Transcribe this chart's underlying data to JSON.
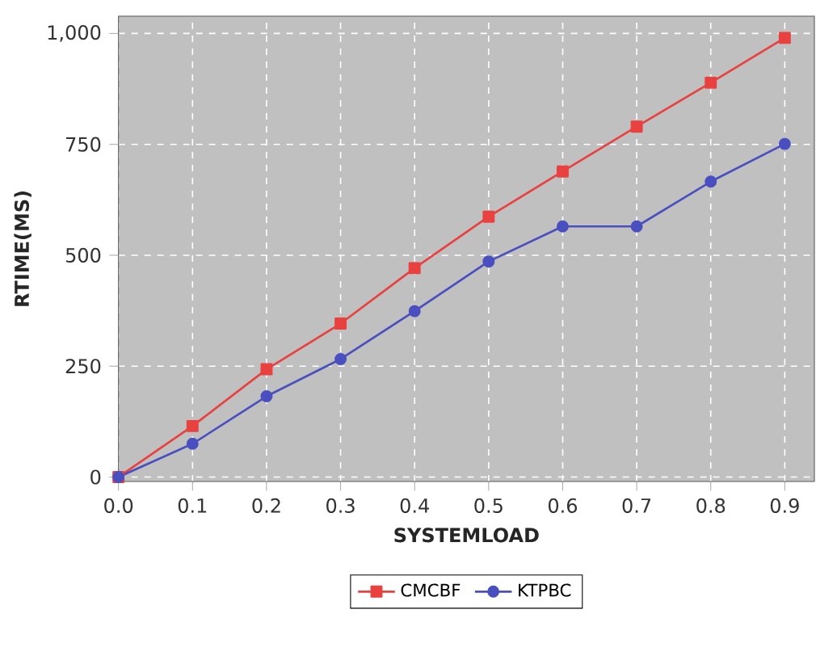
{
  "chart_data": {
    "type": "line",
    "xlabel": "SYSTEMLOAD",
    "ylabel": "RTIME(MS)",
    "x": [
      0.0,
      0.1,
      0.2,
      0.3,
      0.4,
      0.5,
      0.6,
      0.7,
      0.8,
      0.9
    ],
    "series": [
      {
        "name": "CMCBF",
        "color": "#e8413f",
        "marker": "square",
        "values": [
          0,
          115,
          243,
          346,
          471,
          587,
          689,
          790,
          889,
          990
        ]
      },
      {
        "name": "KTPBC",
        "color": "#4a4fc0",
        "marker": "circle",
        "values": [
          0,
          75,
          182,
          266,
          374,
          486,
          565,
          565,
          666,
          751
        ]
      }
    ],
    "xlim": [
      0,
      0.94
    ],
    "ylim": [
      -10,
      1039
    ],
    "xticks": [
      {
        "value": 0,
        "label": "0.0"
      },
      0.1,
      0.2,
      0.3,
      0.4,
      0.5,
      0.6,
      0.7,
      0.8,
      0.9
    ],
    "yticks": [
      0,
      250,
      500,
      750,
      {
        "value": 1000,
        "label": "1,000"
      }
    ],
    "grid": true,
    "legend": "bottom",
    "line_style": "solid"
  }
}
